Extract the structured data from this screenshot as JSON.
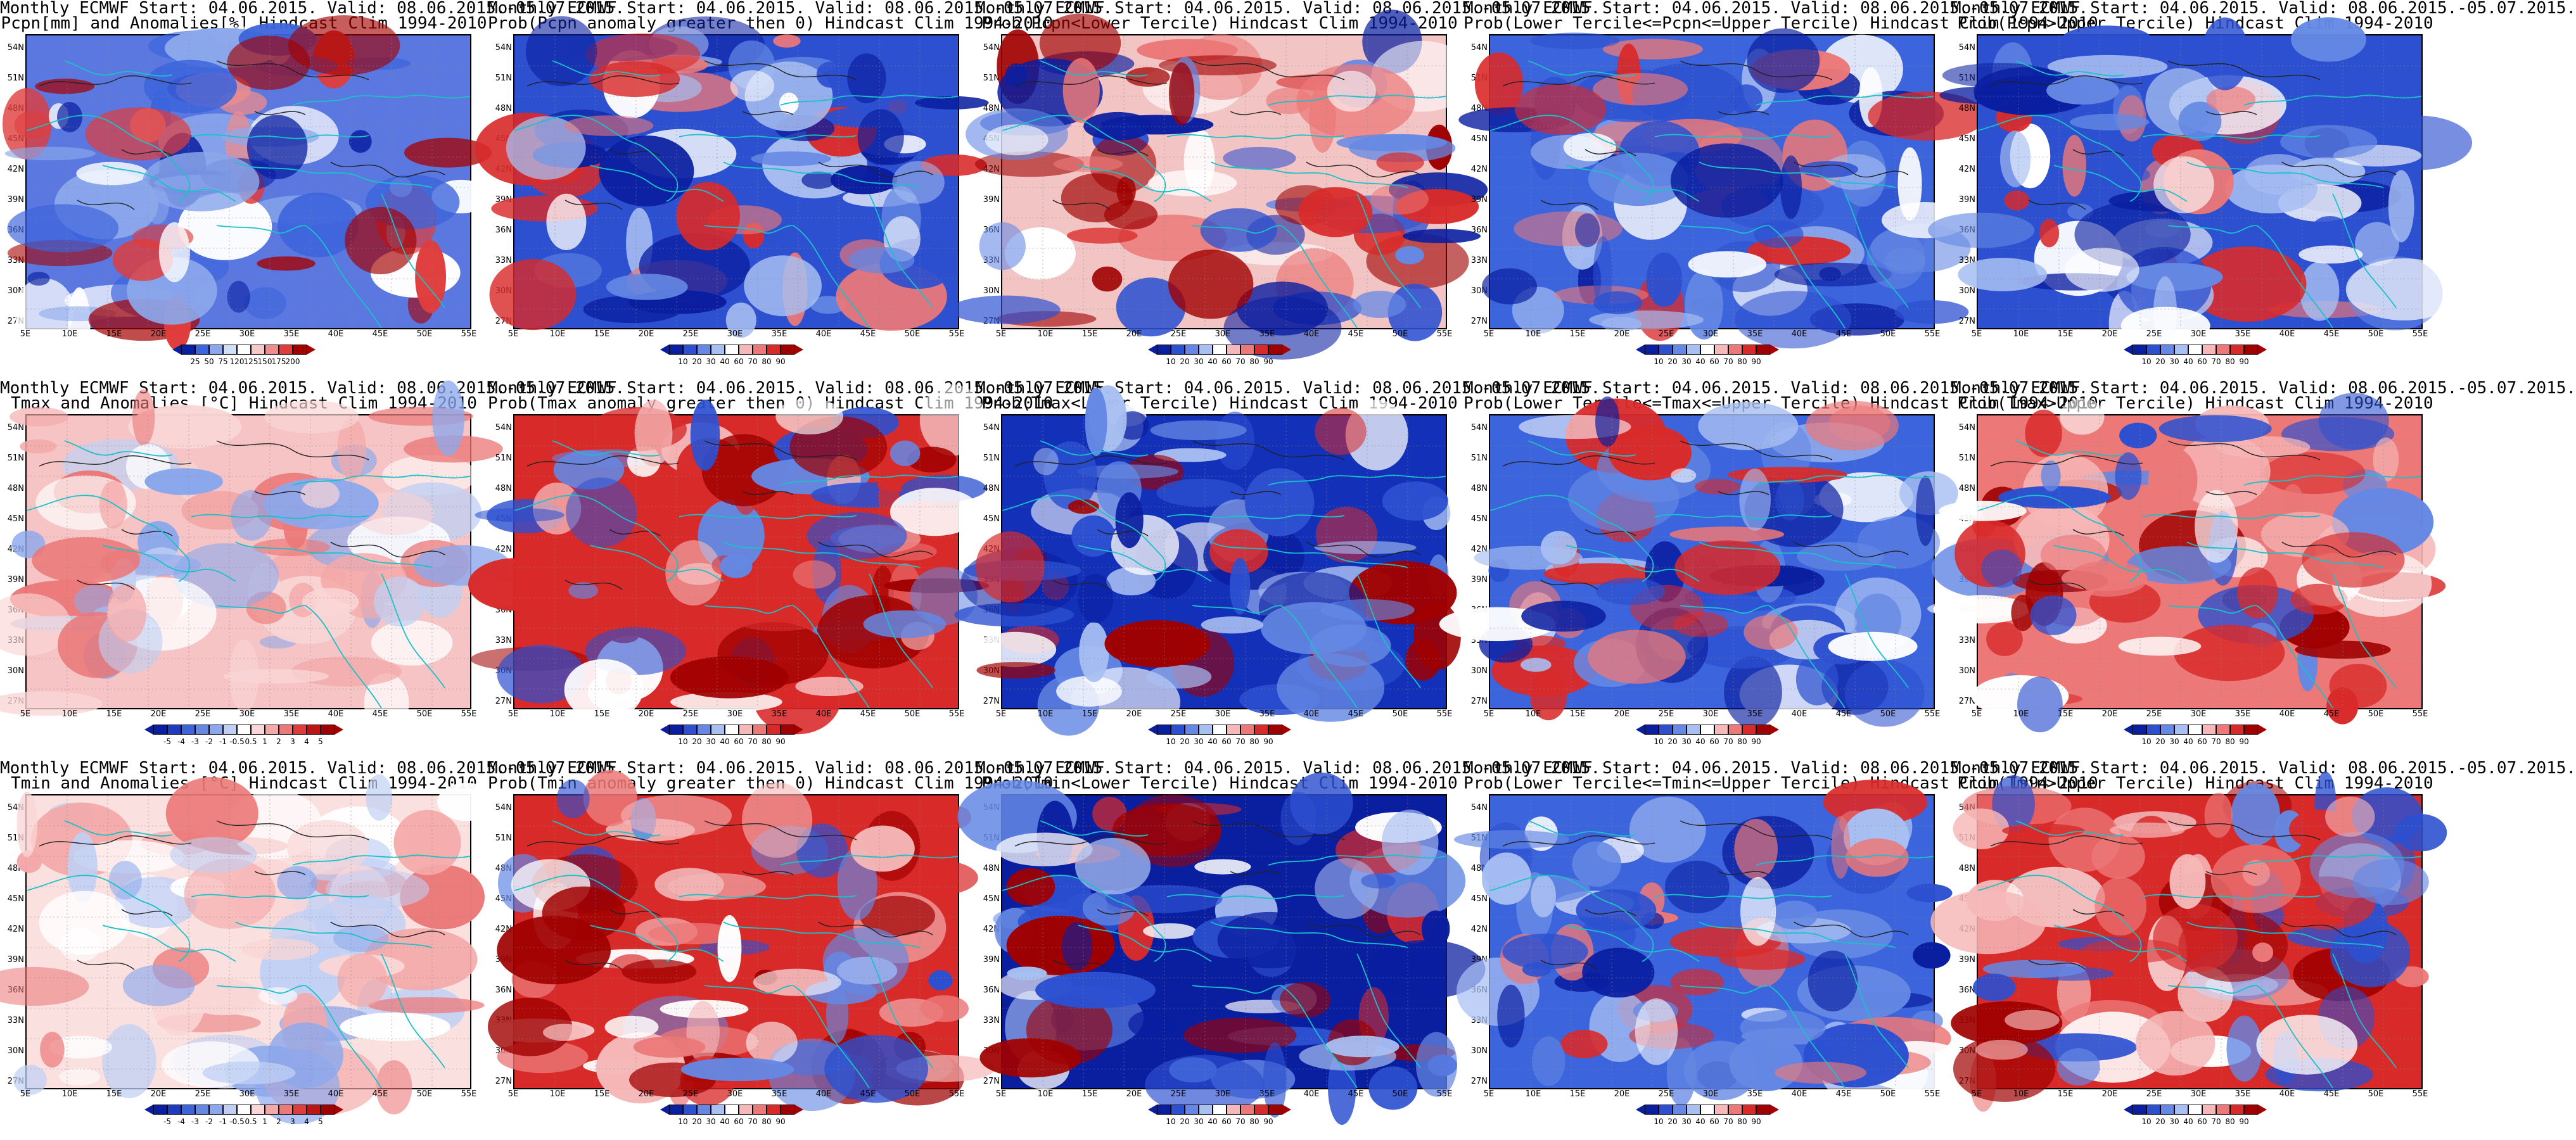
{
  "lat_labels": [
    "54N",
    "51N",
    "48N",
    "45N",
    "42N",
    "39N",
    "36N",
    "33N",
    "30N",
    "27N"
  ],
  "lon_labels": [
    "5E",
    "10E",
    "15E",
    "20E",
    "25E",
    "30E",
    "35E",
    "40E",
    "45E",
    "50E",
    "55E"
  ],
  "scales": {
    "pcpn_anom": {
      "ticks": [
        "25",
        "50",
        "75",
        "120",
        "125",
        "150",
        "175",
        "200"
      ],
      "colors": [
        "#0a1ea0",
        "#3c64dc",
        "#8ca8ec",
        "#d2ddf6",
        "#ffffff",
        "#f7c8c8",
        "#ef8c8c",
        "#e03c3c",
        "#a50000"
      ]
    },
    "prob": {
      "ticks": [
        "10",
        "20",
        "30",
        "40",
        "60",
        "70",
        "80",
        "90"
      ],
      "colors": [
        "#0a1ea0",
        "#2c50d0",
        "#6488e4",
        "#a8bff2",
        "#ffffff",
        "#f6b8b8",
        "#ec7878",
        "#d92a2a",
        "#a00000"
      ]
    },
    "temp_anom": {
      "ticks": [
        "-5",
        "-4",
        "-3",
        "-2",
        "-1",
        "-0.5",
        "0.5",
        "1",
        "2",
        "3",
        "4",
        "5"
      ],
      "colors": [
        "#0a1ea0",
        "#1e3cc0",
        "#3c64dc",
        "#6488e4",
        "#8ca8ec",
        "#c0d0f4",
        "#ffffff",
        "#fad6d6",
        "#f4a8a8",
        "#ec7878",
        "#e03c3c",
        "#c01414",
        "#a00000"
      ]
    }
  },
  "panels": [
    {
      "title1": "Monthly ECMWF Start: 04.06.2015. Valid: 08.06.2015.-05.07.2015.",
      "title2": "Pcpn[mm] and Anomalies[%] Hindcast Clim 1994-2010",
      "scale": "pcpn_anom",
      "base": "#5a78e0",
      "theme": "pcpn"
    },
    {
      "title1": "Monthly ECMWF Start: 04.06.2015. Valid: 08.06.2015.-05.07.2015.",
      "title2": "Prob(Pcpn anomaly greater then 0) Hindcast Clim 1994-2010",
      "scale": "prob",
      "base": "#2c50d0",
      "theme": "blue"
    },
    {
      "title1": "Monthly ECMWF Start: 04.06.2015. Valid: 08.06.2015.-05.07.2015.",
      "title2": "Prob(Pcpn<Lower Tercile) Hindcast Clim 1994-2010",
      "scale": "prob",
      "base": "#f3c4c4",
      "theme": "mixed"
    },
    {
      "title1": "Monthly ECMWF Start: 04.06.2015. Valid: 08.06.2015.-05.07.2015.",
      "title2": "Prob(Lower Tercile<=Pcpn<=Upper Tercile) Hindcast Clim 1994-2010",
      "scale": "prob",
      "base": "#3c64dc",
      "theme": "blue"
    },
    {
      "title1": "Monthly ECMWF Start: 04.06.2015. Valid: 08.06.2015.-05.07.2015.",
      "title2": "Prob(Pcpn>Upper Tercile) Hindcast Clim 1994-2010",
      "scale": "prob",
      "base": "#2c50d0",
      "theme": "blue"
    },
    {
      "title1": "Monthly ECMWF Start: 04.06.2015. Valid: 08.06.2015.-05.07.2015.",
      "title2": "Tmax and Anomalies [°C] Hindcast Clim 1994-2010",
      "scale": "temp_anom",
      "base": "#f6c4c4",
      "theme": "lightred"
    },
    {
      "title1": "Monthly ECMWF Start: 04.06.2015. Valid: 08.06.2015.-05.07.2015.",
      "title2": "Prob(Tmax anomaly greater then 0) Hindcast Clim 1994-2010",
      "scale": "prob",
      "base": "#d92a2a",
      "theme": "red"
    },
    {
      "title1": "Monthly ECMWF Start: 04.06.2015. Valid: 08.06.2015.-05.07.2015.",
      "title2": "Prob(Tmax<Lower Tercile) Hindcast Clim 1994-2010",
      "scale": "prob",
      "base": "#1230b8",
      "theme": "darkblue"
    },
    {
      "title1": "Monthly ECMWF Start: 04.06.2015. Valid: 08.06.2015.-05.07.2015.",
      "title2": "Prob(Lower Tercile<=Tmax<=Upper Tercile) Hindcast Clim 1994-2010",
      "scale": "prob",
      "base": "#3c64dc",
      "theme": "blue"
    },
    {
      "title1": "Monthly ECMWF Start: 04.06.2015. Valid: 08.06.2015.-05.07.2015.",
      "title2": "Prob(Tmax>Upper Tercile) Hindcast Clim 1994-2010",
      "scale": "prob",
      "base": "#ec7878",
      "theme": "red"
    },
    {
      "title1": "Monthly ECMWF Start: 04.06.2015. Valid: 08.06.2015.-05.07.2015.",
      "title2": "Tmin and Anomalies [°C] Hindcast Clim 1994-2010",
      "scale": "temp_anom",
      "base": "#fbe0e0",
      "theme": "lightred"
    },
    {
      "title1": "Monthly ECMWF Start: 04.06.2015. Valid: 08.06.2015.-05.07.2015.",
      "title2": "Prob(Tmin anomaly greater then 0) Hindcast Clim 1994-2010",
      "scale": "prob",
      "base": "#d92a2a",
      "theme": "red"
    },
    {
      "title1": "Monthly ECMWF Start: 04.06.2015. Valid: 08.06.2015.-05.07.2015.",
      "title2": "Prob(Tmin<Lower Tercile) Hindcast Clim 1994-2010",
      "scale": "prob",
      "base": "#0a1ea0",
      "theme": "darkblue"
    },
    {
      "title1": "Monthly ECMWF Start: 04.06.2015. Valid: 08.06.2015.-05.07.2015.",
      "title2": "Prob(Lower Tercile<=Tmin<=Upper Tercile) Hindcast Clim 1994-2010",
      "scale": "prob",
      "base": "#3c64dc",
      "theme": "blue"
    },
    {
      "title1": "Monthly ECMWF Start: 04.06.2015. Valid: 08.06.2015.-05.07.2015.",
      "title2": "Prob(Tmin>Upper Tercile) Hindcast Clim 1994-2010",
      "scale": "prob",
      "base": "#d92a2a",
      "theme": "red"
    }
  ]
}
